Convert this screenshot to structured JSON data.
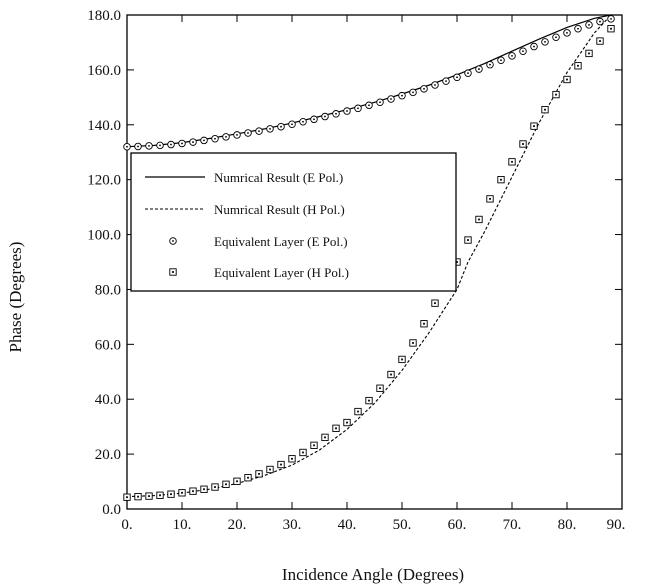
{
  "chart_data": {
    "type": "line",
    "xlabel": "Incidence Angle (Degrees)",
    "ylabel": "Phase (Degrees)",
    "xlim": [
      0,
      90
    ],
    "ylim": [
      0,
      180
    ],
    "x_ticks": [
      0,
      10,
      20,
      30,
      40,
      50,
      60,
      70,
      80,
      90
    ],
    "x_tick_labels": [
      "0.",
      "10.",
      "20.",
      "30.",
      "40.",
      "50.",
      "60.",
      "70.",
      "80.",
      "90."
    ],
    "y_ticks": [
      0,
      20,
      40,
      60,
      80,
      100,
      120,
      140,
      160,
      180
    ],
    "y_tick_labels": [
      "0.0",
      "20.0",
      "40.0",
      "60.0",
      "80.0",
      "100.0",
      "120.0",
      "140.0",
      "160.0",
      "180.0"
    ],
    "grid": false,
    "legend_position": "left, middle",
    "series": [
      {
        "name": "Numrical Result (E Pol.)",
        "style": "solid-line",
        "color": "#000000",
        "x": [
          0,
          5,
          10,
          15,
          20,
          25,
          30,
          35,
          40,
          45,
          50,
          55,
          60,
          65,
          70,
          75,
          80,
          85,
          88
        ],
        "y": [
          132,
          132.5,
          133.5,
          135,
          136.7,
          138.5,
          140.6,
          143,
          145.5,
          148.2,
          151.2,
          154.5,
          158.2,
          162.3,
          166.8,
          171.3,
          175.5,
          178.8,
          180
        ]
      },
      {
        "name": "Numrical Result (H Pol.)",
        "style": "dashed-line",
        "color": "#000000",
        "x": [
          0,
          5,
          10,
          15,
          20,
          25,
          30,
          35,
          40,
          45,
          50,
          55,
          60,
          62,
          65,
          70,
          75,
          80,
          85,
          88
        ],
        "y": [
          4.5,
          4.9,
          5.8,
          7.2,
          9.3,
          12.2,
          16,
          21.5,
          29,
          38.5,
          50.5,
          64.5,
          80,
          90,
          101,
          121,
          141,
          159,
          173.5,
          180
        ]
      },
      {
        "name": "Equivalent Layer (E Pol.)",
        "style": "circle-dot-marker",
        "color": "#000000",
        "x": [
          0,
          2,
          4,
          6,
          8,
          10,
          12,
          14,
          16,
          18,
          20,
          22,
          24,
          26,
          28,
          30,
          32,
          34,
          36,
          38,
          40,
          42,
          44,
          46,
          48,
          50,
          52,
          54,
          56,
          58,
          60,
          62,
          64,
          66,
          68,
          70,
          72,
          74,
          76,
          78,
          80,
          82,
          84,
          86,
          88
        ],
        "y": [
          132,
          132.1,
          132.3,
          132.5,
          132.8,
          133.2,
          133.7,
          134.3,
          134.9,
          135.6,
          136.3,
          137,
          137.7,
          138.5,
          139.3,
          140.2,
          141.1,
          142,
          143,
          144,
          145,
          146,
          147.1,
          148.2,
          149.4,
          150.6,
          151.8,
          153.1,
          154.5,
          155.9,
          157.3,
          158.8,
          160.3,
          161.9,
          163.5,
          165.1,
          166.8,
          168.5,
          170.2,
          171.9,
          173.5,
          175,
          176.4,
          177.6,
          178.6
        ]
      },
      {
        "name": "Equivalent Layer (H Pol.)",
        "style": "square-dot-marker",
        "color": "#000000",
        "x": [
          0,
          2,
          4,
          6,
          8,
          10,
          12,
          14,
          16,
          18,
          20,
          22,
          24,
          26,
          28,
          30,
          32,
          34,
          36,
          38,
          40,
          42,
          44,
          46,
          48,
          50,
          52,
          54,
          56,
          58,
          60,
          62,
          64,
          66,
          68,
          70,
          72,
          74,
          76,
          78,
          80,
          82,
          84,
          86,
          88
        ],
        "y": [
          4.3,
          4.5,
          4.7,
          5,
          5.4,
          5.9,
          6.5,
          7.2,
          8,
          9,
          10.1,
          11.4,
          12.8,
          14.4,
          16.2,
          18.3,
          20.6,
          23.2,
          26.1,
          29.4,
          31.5,
          35.5,
          39.5,
          44,
          49,
          54.5,
          60.5,
          67.5,
          75,
          82,
          90,
          98,
          105.5,
          113,
          120,
          126.5,
          133,
          139.5,
          145.5,
          151,
          156.5,
          161.5,
          166,
          170.5,
          175
        ]
      }
    ]
  }
}
